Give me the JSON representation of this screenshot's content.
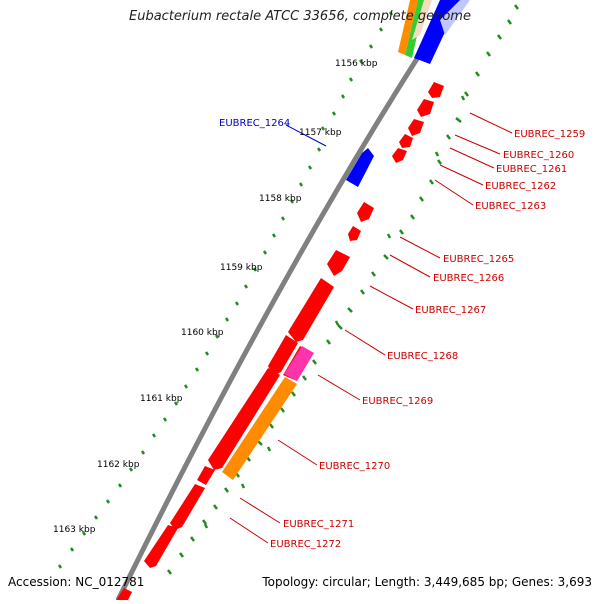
{
  "title": "Eubacterium rectale ATCC 33656, complete genome",
  "footer": {
    "accession": "Accession: NC_012781",
    "summary": "Topology: circular; Length: 3,449,685 bp; Genes: 3,693"
  },
  "colors": {
    "background": "#ffffff",
    "backbone": "#808080",
    "gene_reverse": "#ff0000",
    "gene_forward": "#0000ff",
    "tick": "#228b22",
    "label_red": "#cc0000",
    "label_blue": "#0000cc",
    "orange": "#ff8c00",
    "magenta": "#ff33aa",
    "green": "#33cc33"
  },
  "kbp_ticks": [
    {
      "text": "1156 kbp"
    },
    {
      "text": "1157 kbp"
    },
    {
      "text": "1158 kbp"
    },
    {
      "text": "1159 kbp"
    },
    {
      "text": "1160 kbp"
    },
    {
      "text": "1161 kbp"
    },
    {
      "text": "1162 kbp"
    },
    {
      "text": "1163 kbp"
    }
  ],
  "gene_labels": [
    {
      "text": "EUBREC_1264",
      "color": "#0000cc"
    },
    {
      "text": "EUBREC_1259",
      "color": "#cc0000"
    },
    {
      "text": "EUBREC_1260",
      "color": "#cc0000"
    },
    {
      "text": "EUBREC_1261",
      "color": "#cc0000"
    },
    {
      "text": "EUBREC_1262",
      "color": "#cc0000"
    },
    {
      "text": "EUBREC_1263",
      "color": "#cc0000"
    },
    {
      "text": "EUBREC_1265",
      "color": "#cc0000"
    },
    {
      "text": "EUBREC_1266",
      "color": "#cc0000"
    },
    {
      "text": "EUBREC_1267",
      "color": "#cc0000"
    },
    {
      "text": "EUBREC_1268",
      "color": "#cc0000"
    },
    {
      "text": "EUBREC_1269",
      "color": "#cc0000"
    },
    {
      "text": "EUBREC_1270",
      "color": "#cc0000"
    },
    {
      "text": "EUBREC_1271",
      "color": "#cc0000"
    },
    {
      "text": "EUBREC_1272",
      "color": "#cc0000"
    }
  ]
}
